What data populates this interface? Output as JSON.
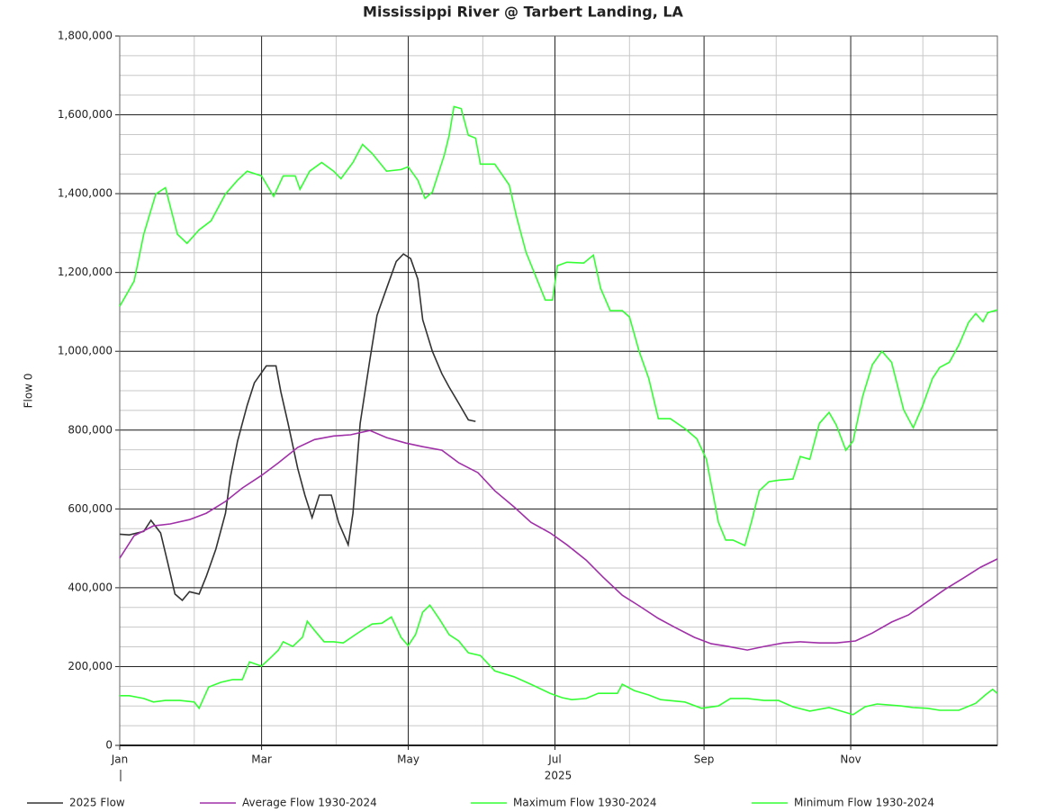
{
  "chart_data": {
    "type": "line",
    "title": "Mississippi River @ Tarbert Landing, LA",
    "y_label": "Flow 0",
    "x_label": "2025",
    "xlim": [
      0,
      365
    ],
    "xticks": [
      {
        "value": 0,
        "label": "Jan"
      },
      {
        "value": 59,
        "label": "Mar"
      },
      {
        "value": 120,
        "label": "May"
      },
      {
        "value": 181,
        "label": "Jul"
      },
      {
        "value": 243,
        "label": "Sep"
      },
      {
        "value": 304,
        "label": "Nov"
      }
    ],
    "x_minor_ticks": [
      31,
      90,
      151,
      212,
      273,
      334
    ],
    "ylim": [
      0,
      1800000
    ],
    "yticks": [
      0,
      {
        "value": 200000,
        "label": "200,000"
      },
      {
        "value": 400000,
        "label": "400,000"
      },
      {
        "value": 600000,
        "label": "600,000"
      },
      {
        "value": 800000,
        "label": "800,000"
      },
      {
        "value": 1000000,
        "label": "1,000,000"
      },
      {
        "value": 1200000,
        "label": "1,200,000"
      },
      {
        "value": 1400000,
        "label": "1,400,000"
      },
      {
        "value": 1600000,
        "label": "1,600,000"
      },
      {
        "value": 1800000,
        "label": "1,800,000"
      }
    ],
    "y_minor_step": 50000,
    "grid": true,
    "legend": "bottom",
    "series": [
      {
        "name": "2025 Flow",
        "color": "#333333",
        "x": [
          0,
          4,
          10,
          13,
          17,
          20,
          23,
          26,
          29,
          33,
          36,
          40,
          44,
          46,
          49,
          53,
          56,
          61,
          65,
          67,
          70,
          74,
          77,
          80,
          83,
          88,
          91,
          95,
          97,
          100,
          104,
          107,
          111,
          115,
          118,
          121,
          124,
          126,
          130,
          134,
          137,
          141,
          145,
          148
        ],
        "values": [
          536000,
          534000,
          543000,
          571000,
          539000,
          463000,
          384000,
          368000,
          390000,
          384000,
          429000,
          498000,
          589000,
          680000,
          772000,
          863000,
          920000,
          963000,
          963000,
          897000,
          817000,
          703000,
          635000,
          578000,
          635000,
          635000,
          566000,
          509000,
          589000,
          817000,
          977000,
          1091000,
          1160000,
          1228000,
          1247000,
          1235000,
          1183000,
          1080000,
          1000000,
          943000,
          909000,
          868000,
          826000,
          822000
        ]
      },
      {
        "name": "Average Flow 1930-2024",
        "color": "#a030a8",
        "x": [
          0,
          6,
          14,
          21,
          29,
          36,
          44,
          51,
          59,
          66,
          74,
          81,
          89,
          96,
          104,
          111,
          119,
          126,
          134,
          141,
          149,
          156,
          164,
          171,
          179,
          186,
          194,
          201,
          209,
          216,
          224,
          231,
          239,
          246,
          253,
          261,
          268,
          276,
          283,
          291,
          298,
          306,
          313,
          321,
          328,
          336,
          343,
          351,
          358,
          365
        ],
        "values": [
          475000,
          532000,
          557000,
          562000,
          573000,
          589000,
          619000,
          653000,
          685000,
          717000,
          756000,
          776000,
          785000,
          788000,
          799000,
          781000,
          767000,
          758000,
          749000,
          717000,
          692000,
          646000,
          605000,
          566000,
          539000,
          509000,
          470000,
          427000,
          381000,
          354000,
          322000,
          299000,
          274000,
          258000,
          251000,
          242000,
          251000,
          260000,
          263000,
          260000,
          260000,
          265000,
          285000,
          313000,
          331000,
          365000,
          395000,
          425000,
          452000,
          473000
        ]
      },
      {
        "name": "Maximum Flow 1930-2024",
        "color": "#33ff33",
        "x": [
          0,
          6,
          10,
          15,
          19,
          24,
          28,
          33,
          38,
          44,
          49,
          53,
          59,
          64,
          68,
          73,
          75,
          79,
          84,
          89,
          92,
          97,
          101,
          105,
          111,
          117,
          120,
          124,
          127,
          130,
          135,
          137,
          139,
          142,
          145,
          148,
          150,
          156,
          162,
          165,
          169,
          175,
          177,
          180,
          182,
          186,
          193,
          197,
          200,
          204,
          209,
          212,
          216,
          220,
          224,
          229,
          235,
          240,
          244,
          249,
          252,
          255,
          260,
          263,
          266,
          270,
          274,
          280,
          283,
          287,
          291,
          295,
          298,
          302,
          305,
          309,
          313,
          317,
          321,
          326,
          330,
          334,
          338,
          341,
          345,
          349,
          353,
          356,
          359,
          361,
          365
        ],
        "values": [
          1114000,
          1178000,
          1297000,
          1399000,
          1415000,
          1297000,
          1274000,
          1308000,
          1331000,
          1399000,
          1434000,
          1457000,
          1445000,
          1393000,
          1445000,
          1445000,
          1411000,
          1457000,
          1479000,
          1457000,
          1438000,
          1479000,
          1525000,
          1502000,
          1457000,
          1461000,
          1468000,
          1434000,
          1388000,
          1404000,
          1498000,
          1548000,
          1621000,
          1616000,
          1548000,
          1541000,
          1475000,
          1475000,
          1422000,
          1342000,
          1251000,
          1160000,
          1130000,
          1130000,
          1217000,
          1226000,
          1224000,
          1244000,
          1160000,
          1103000,
          1103000,
          1087000,
          1000000,
          931000,
          829000,
          829000,
          804000,
          778000,
          726000,
          566000,
          521000,
          521000,
          507000,
          573000,
          646000,
          669000,
          673000,
          676000,
          733000,
          726000,
          817000,
          845000,
          813000,
          749000,
          772000,
          886000,
          966000,
          1000000,
          972000,
          852000,
          806000,
          863000,
          931000,
          959000,
          972000,
          1016000,
          1073000,
          1096000,
          1075000,
          1098000,
          1105000
        ]
      },
      {
        "name": "Minimum Flow 1930-2024",
        "color": "#33ff33",
        "x": [
          0,
          4,
          10,
          14,
          19,
          25,
          31,
          33,
          37,
          42,
          47,
          51,
          54,
          59,
          63,
          66,
          68,
          72,
          76,
          78,
          81,
          85,
          89,
          93,
          98,
          102,
          105,
          109,
          113,
          117,
          120,
          123,
          126,
          129,
          133,
          137,
          141,
          145,
          150,
          156,
          164,
          171,
          179,
          184,
          188,
          194,
          199,
          207,
          209,
          214,
          220,
          225,
          235,
          242,
          249,
          254,
          261,
          268,
          274,
          280,
          287,
          295,
          300,
          305,
          310,
          315,
          325,
          330,
          336,
          341,
          349,
          356,
          360,
          363,
          365
        ],
        "values": [
          126000,
          126000,
          119000,
          110000,
          114000,
          114000,
          110000,
          94000,
          148000,
          160000,
          167000,
          167000,
          212000,
          201000,
          224000,
          242000,
          263000,
          251000,
          274000,
          315000,
          292000,
          263000,
          263000,
          260000,
          281000,
          297000,
          308000,
          310000,
          326000,
          274000,
          253000,
          281000,
          338000,
          356000,
          320000,
          281000,
          265000,
          235000,
          228000,
          189000,
          174000,
          155000,
          132000,
          121000,
          116000,
          119000,
          132000,
          132000,
          155000,
          139000,
          128000,
          116000,
          110000,
          94000,
          100000,
          119000,
          119000,
          114000,
          114000,
          98000,
          87000,
          96000,
          87000,
          78000,
          98000,
          105000,
          100000,
          96000,
          94000,
          89000,
          89000,
          107000,
          128000,
          142000,
          132000
        ]
      }
    ]
  }
}
